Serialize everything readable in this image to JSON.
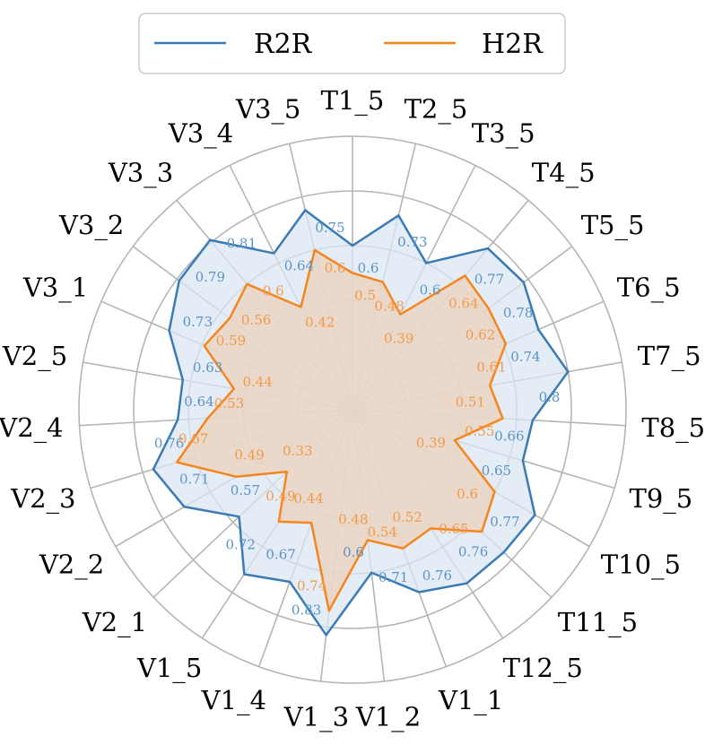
{
  "chart_data": {
    "type": "radar",
    "categories": [
      "T1_5",
      "T2_5",
      "T3_5",
      "T4_5",
      "T5_5",
      "T6_5",
      "T7_5",
      "T8_5",
      "T9_5",
      "T10_5",
      "T11_5",
      "T12_5",
      "V1_1",
      "V1_2",
      "V1_3",
      "V1_4",
      "V1_5",
      "V2_1",
      "V2_2",
      "V2_3",
      "V2_4",
      "V2_5",
      "V3_1",
      "V3_2",
      "V3_3",
      "V3_4",
      "V3_5"
    ],
    "series": [
      {
        "name": "R2R",
        "color": "#3b7bb5",
        "fill": "#dbe6f2",
        "values": [
          0.6,
          0.73,
          0.6,
          0.77,
          0.78,
          0.74,
          0.8,
          0.66,
          0.65,
          0.77,
          0.76,
          0.76,
          0.71,
          0.6,
          0.83,
          0.67,
          0.72,
          0.57,
          0.71,
          0.76,
          0.64,
          0.63,
          0.73,
          0.79,
          0.81,
          0.64,
          0.75
        ]
      },
      {
        "name": "H2R",
        "color": "#f5861f",
        "fill": "#ecd3bc",
        "values": [
          0.5,
          0.48,
          0.39,
          0.64,
          0.62,
          0.61,
          0.51,
          0.55,
          0.39,
          0.6,
          0.65,
          0.52,
          0.54,
          0.48,
          0.74,
          0.44,
          0.49,
          0.33,
          0.49,
          0.67,
          0.53,
          0.44,
          0.59,
          0.56,
          0.6,
          0.42,
          0.6
        ]
      }
    ],
    "rlim": [
      0,
      1
    ],
    "grid": true,
    "legend_position": "top"
  }
}
